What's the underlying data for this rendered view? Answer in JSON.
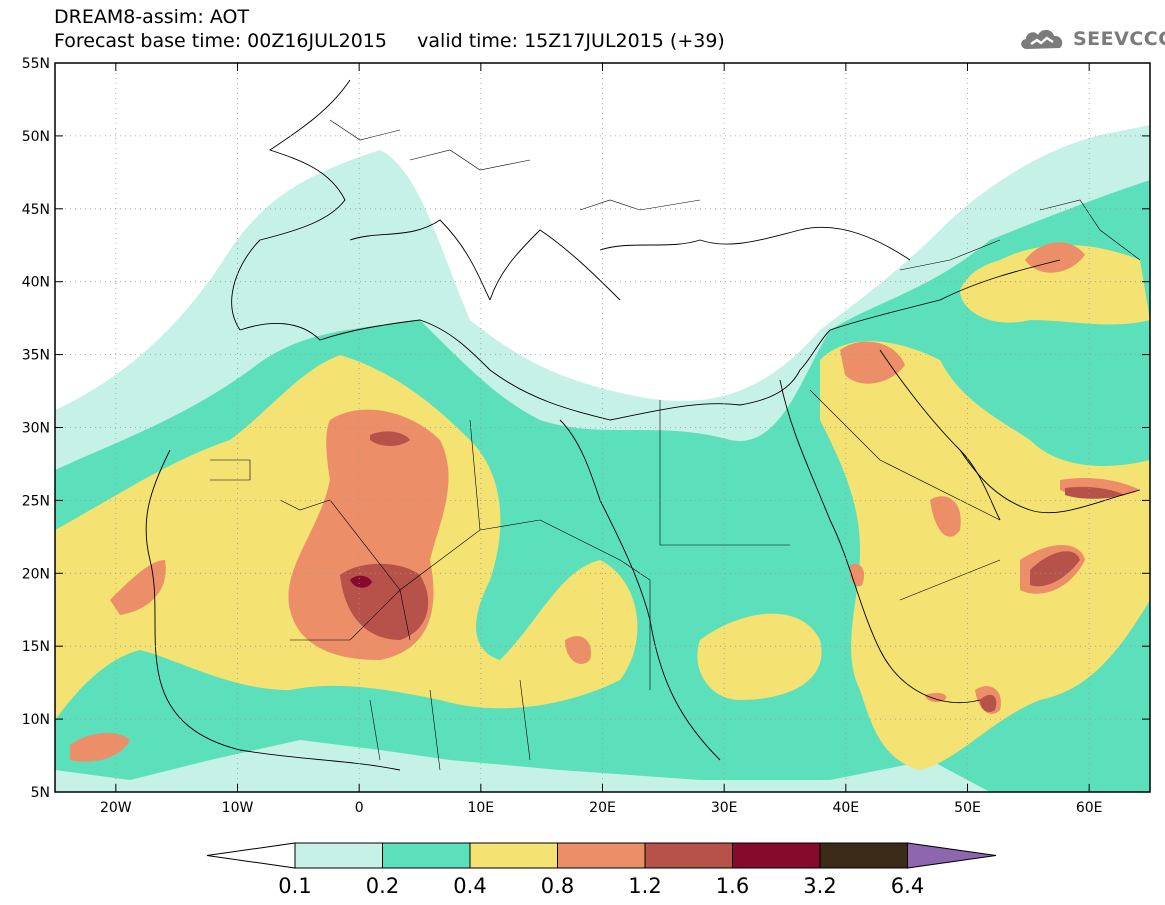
{
  "title": {
    "line1": "DREAM8-assim: AOT",
    "line2": "Forecast base time: 00Z16JUL2015     valid time: 15Z17JUL2015 (+39)"
  },
  "logo": {
    "text": "SEEVCCC",
    "icon": "cloud-icon"
  },
  "axes": {
    "lat_labels": [
      "55N",
      "50N",
      "45N",
      "40N",
      "35N",
      "30N",
      "25N",
      "20N",
      "15N",
      "10N",
      "5N"
    ],
    "lon_labels": [
      "20W",
      "10W",
      "0",
      "10E",
      "20E",
      "30E",
      "40E",
      "50E",
      "60E"
    ],
    "lat_range": [
      5,
      55
    ],
    "lon_range": [
      -25,
      65
    ]
  },
  "colorbar": {
    "ticks": [
      "0.1",
      "0.2",
      "0.4",
      "0.8",
      "1.2",
      "1.6",
      "3.2",
      "6.4"
    ],
    "colors": [
      "#ffffff",
      "#c6f1e6",
      "#5ce0bb",
      "#f4e272",
      "#ec8f68",
      "#b6524a",
      "#860a2c",
      "#3c2a18",
      "#8e66b0"
    ]
  },
  "palette": {
    "c1": "#c6f1e6",
    "c2": "#5ce0bb",
    "c3": "#f4e272",
    "c4": "#ec8f68",
    "c5": "#b6524a",
    "c6": "#860a2c"
  }
}
